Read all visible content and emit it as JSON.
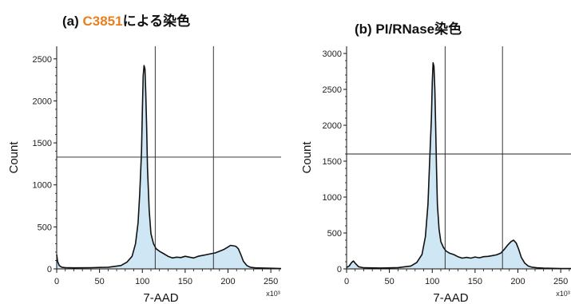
{
  "panels": [
    {
      "title_prefix": "(a) ",
      "title_highlight": "C3851",
      "title_suffix": "による染色"
    },
    {
      "title_prefix": "(b) PI/RNase染色"
    }
  ],
  "colors": {
    "highlight": "#e8801f",
    "fill": "#cfe7f5",
    "line": "#111111"
  },
  "chart_data": [
    {
      "type": "area",
      "title": "(a) C3851による染色",
      "xlabel": "7-AAD",
      "ylabel": "Count",
      "x_unit": "x10³",
      "xlim": [
        0,
        262
      ],
      "ylim": [
        0,
        2650
      ],
      "x_ticks": [
        0,
        50,
        100,
        150,
        200,
        250
      ],
      "y_ticks": [
        0,
        500,
        1000,
        1500,
        2000,
        2500
      ],
      "gates": {
        "vertical": [
          115,
          183
        ],
        "horizontal": 1330
      },
      "x": [
        0,
        1,
        3,
        6,
        10,
        20,
        40,
        60,
        75,
        82,
        88,
        92,
        95,
        97,
        99,
        100,
        101,
        102,
        103,
        104,
        105,
        106,
        108,
        110,
        113,
        116,
        120,
        125,
        130,
        135,
        140,
        145,
        150,
        155,
        160,
        165,
        170,
        175,
        180,
        185,
        190,
        195,
        200,
        203,
        206,
        209,
        212,
        215,
        218,
        222,
        226,
        232,
        240,
        250,
        262
      ],
      "y": [
        170,
        90,
        40,
        20,
        15,
        12,
        14,
        20,
        40,
        80,
        150,
        300,
        550,
        900,
        1400,
        1900,
        2300,
        2420,
        2380,
        2100,
        1700,
        1200,
        700,
        420,
        300,
        240,
        210,
        180,
        150,
        130,
        140,
        135,
        150,
        140,
        130,
        150,
        160,
        170,
        180,
        190,
        210,
        230,
        260,
        280,
        275,
        270,
        240,
        170,
        90,
        40,
        20,
        12,
        10,
        8,
        5
      ]
    },
    {
      "type": "area",
      "title": "(b) PI/RNase染色",
      "xlabel": "7-AAD",
      "ylabel": "Count",
      "x_unit": "x10³",
      "xlim": [
        0,
        262
      ],
      "ylim": [
        0,
        3100
      ],
      "x_ticks": [
        0,
        50,
        100,
        150,
        200,
        250
      ],
      "y_ticks": [
        0,
        500,
        1000,
        1500,
        2000,
        2500,
        3000
      ],
      "gates": {
        "vertical": [
          115,
          182
        ],
        "horizontal": 1600
      },
      "x": [
        0,
        3,
        6,
        8,
        10,
        14,
        20,
        40,
        60,
        75,
        82,
        88,
        92,
        95,
        97,
        99,
        100,
        101,
        102,
        103,
        104,
        105,
        106,
        108,
        110,
        113,
        116,
        120,
        125,
        130,
        135,
        140,
        145,
        150,
        155,
        160,
        165,
        170,
        175,
        180,
        184,
        188,
        192,
        195,
        198,
        201,
        204,
        208,
        212,
        216,
        222,
        230,
        240,
        250,
        262
      ],
      "y": [
        20,
        40,
        90,
        110,
        80,
        30,
        15,
        12,
        18,
        40,
        90,
        200,
        450,
        900,
        1500,
        2100,
        2600,
        2870,
        2820,
        2500,
        2000,
        1400,
        900,
        550,
        380,
        300,
        250,
        220,
        200,
        170,
        150,
        160,
        150,
        165,
        155,
        170,
        175,
        185,
        195,
        220,
        270,
        330,
        380,
        400,
        360,
        270,
        160,
        80,
        40,
        25,
        15,
        10,
        8,
        6,
        5
      ]
    }
  ]
}
